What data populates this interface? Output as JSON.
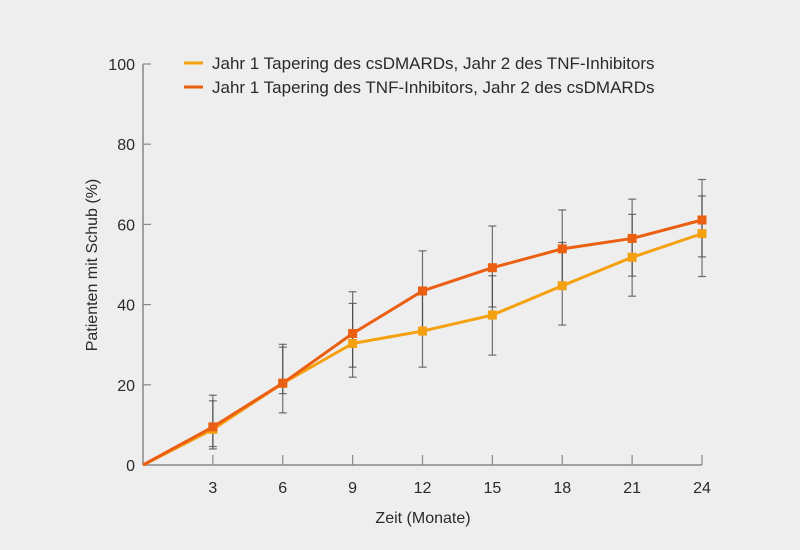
{
  "chart_data": {
    "type": "line",
    "title": "",
    "xlabel": "Zeit (Monate)",
    "ylabel": "Patienten mit Schub (%)",
    "x": [
      0,
      3,
      6,
      9,
      12,
      15,
      18,
      21,
      24
    ],
    "xticks": [
      3,
      6,
      9,
      12,
      15,
      18,
      21,
      24
    ],
    "yticks": [
      0,
      20,
      40,
      60,
      80,
      100
    ],
    "xlim": [
      0,
      24
    ],
    "ylim": [
      0,
      100
    ],
    "grid": false,
    "legend_position": "top-right",
    "series": [
      {
        "name": "Jahr 1 Tapering des csDMARDs, Jahr 2 des TNF-Inhibitors",
        "color": "#F5A00F",
        "values": [
          0,
          8.9,
          20.4,
          30.3,
          33.4,
          37.4,
          44.7,
          51.8,
          57.7
        ],
        "error_low": [
          null,
          4.0,
          13.0,
          21.9,
          24.4,
          27.4,
          34.9,
          42.1,
          47.0
        ],
        "error_high": [
          null,
          16.0,
          29.4,
          40.3,
          42.5,
          47.2,
          55.5,
          62.5,
          67.1
        ]
      },
      {
        "name": "Jahr 1 Tapering des TNF-Inhibitors, Jahr 2 des csDMARDs",
        "color": "#EB5F12",
        "values": [
          0,
          9.5,
          20.4,
          32.8,
          43.4,
          49.2,
          53.9,
          56.5,
          61.1
        ],
        "error_low": [
          null,
          4.6,
          17.8,
          24.4,
          33.5,
          39.4,
          44.0,
          47.1,
          51.9
        ],
        "error_high": [
          null,
          17.4,
          30.1,
          43.2,
          53.4,
          59.6,
          63.6,
          66.3,
          71.2
        ]
      }
    ]
  },
  "legend": {
    "items": [
      {
        "label": "Jahr 1 Tapering des csDMARDs, Jahr 2 des TNF-Inhibitors",
        "color": "#F5A00F"
      },
      {
        "label": "Jahr 1 Tapering des TNF-Inhibitors, Jahr 2 des csDMARDs",
        "color": "#EB5F12"
      }
    ]
  },
  "colors": {
    "background": "#EEEEEE",
    "axis": "#888888",
    "errorbar": "#444444",
    "text": "#2A2A2A"
  }
}
